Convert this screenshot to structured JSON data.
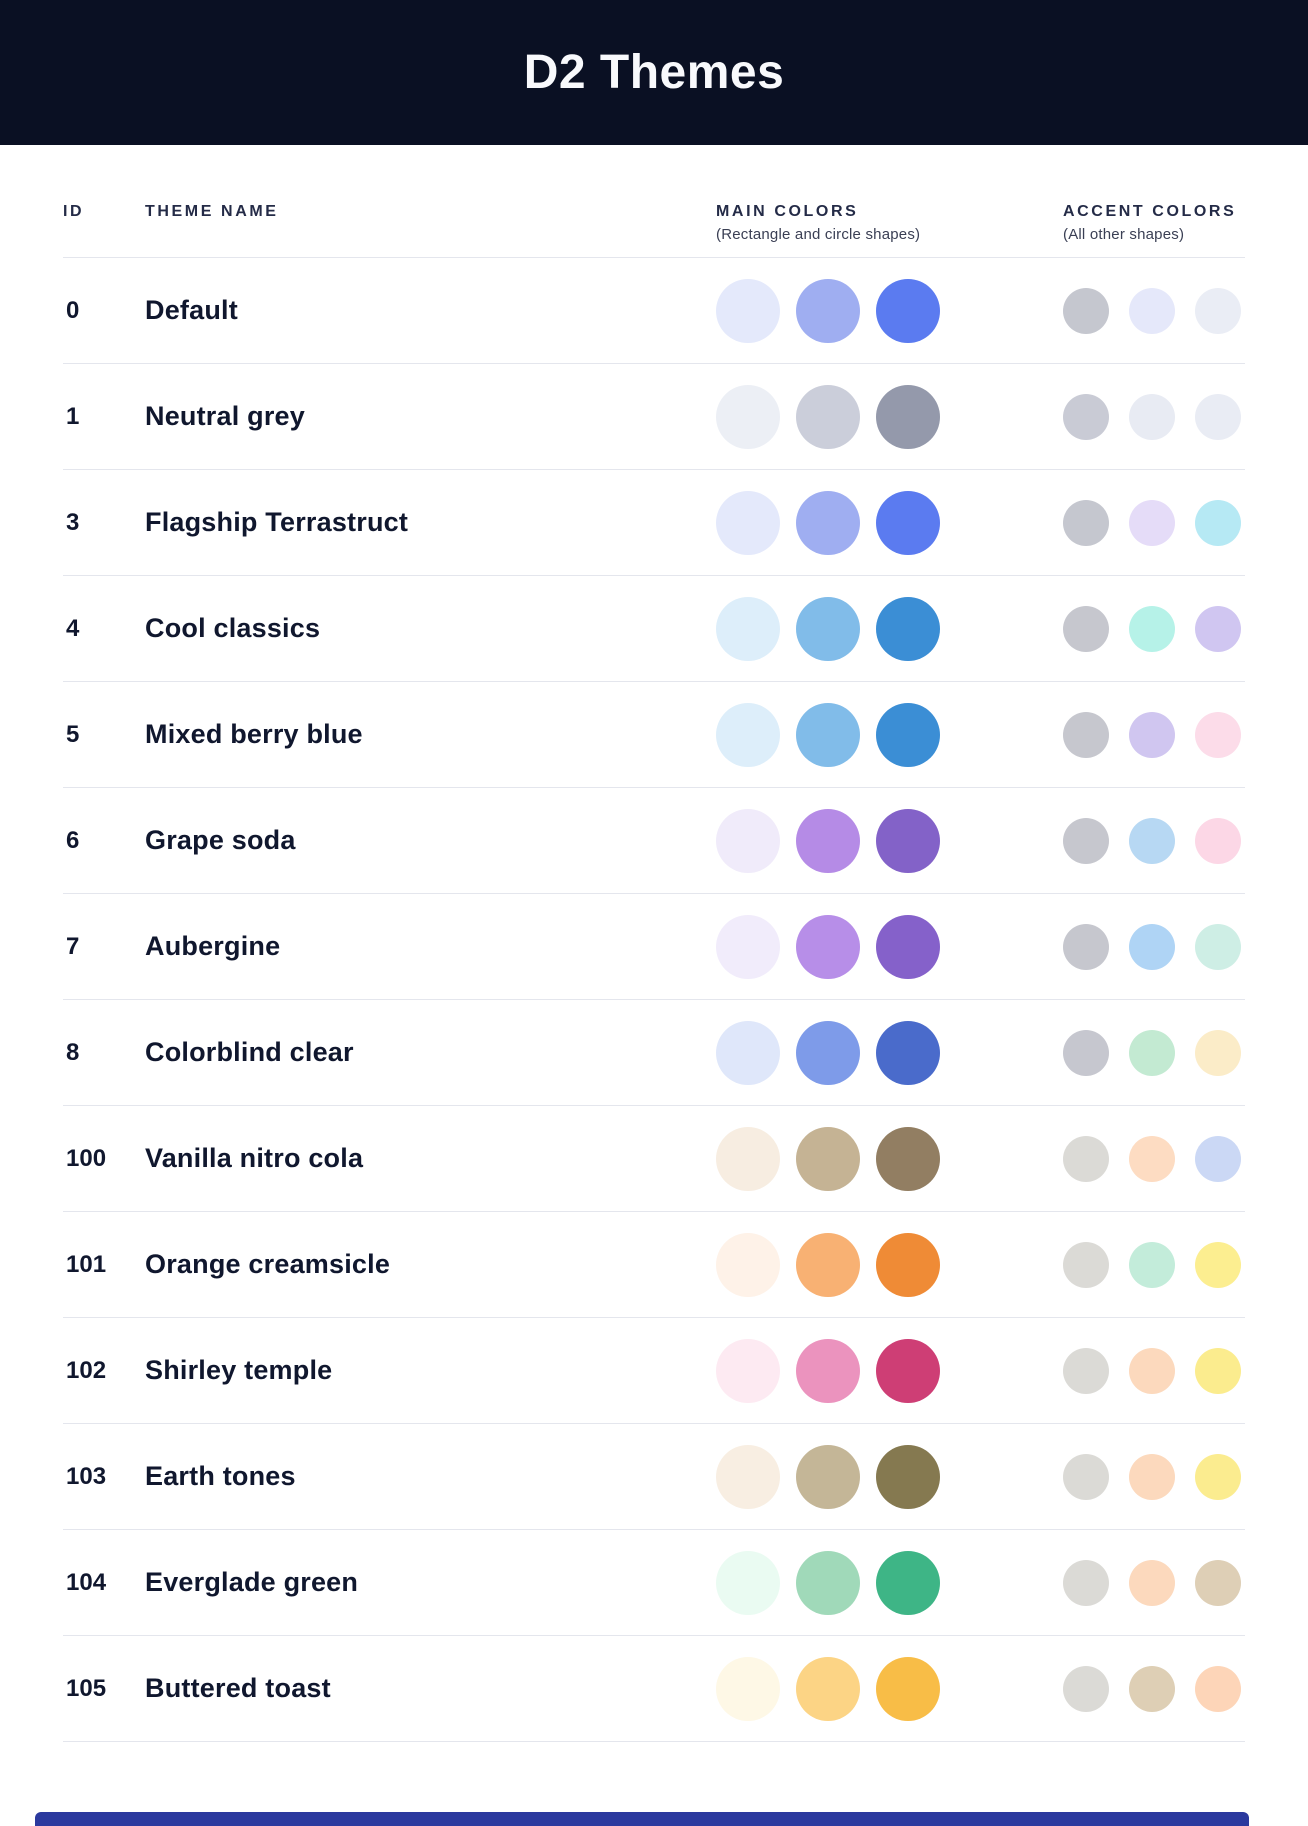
{
  "page": {
    "title": "D2 Themes"
  },
  "colors": {
    "header_bg": "#0A1023",
    "title_text": "#F8F9FC",
    "heading_text": "#242B47",
    "subtitle_text": "#3A3F54",
    "row_text": "#10172E",
    "divider": "#E4E6ED",
    "next_section_bar": "#2B399E"
  },
  "table": {
    "columns": {
      "id_label": "ID",
      "name_label": "THEME NAME",
      "main_label": "MAIN COLORS",
      "main_sub": "(Rectangle and circle shapes)",
      "accent_label": "ACCENT COLORS",
      "accent_sub": "(All other shapes)"
    },
    "themes": [
      {
        "id": "0",
        "name": "Default",
        "main": [
          "#E4E9FB",
          "#9FAEF1",
          "#5B7BF0"
        ],
        "accent": [
          "#C5C7CF",
          "#E5E8FA",
          "#EAEDF5"
        ]
      },
      {
        "id": "1",
        "name": "Neutral grey",
        "main": [
          "#ECEFF5",
          "#CBCEDA",
          "#9499AB"
        ],
        "accent": [
          "#C9CBD5",
          "#E8EBF3",
          "#E9ECF4"
        ]
      },
      {
        "id": "3",
        "name": "Flagship Terrastruct",
        "main": [
          "#E4E9FB",
          "#9FAEF1",
          "#5B7BF0"
        ],
        "accent": [
          "#C5C7CF",
          "#E5DCF8",
          "#B6E9F4"
        ]
      },
      {
        "id": "4",
        "name": "Cool classics",
        "main": [
          "#DDEEFA",
          "#81BCE9",
          "#3B8ED5"
        ],
        "accent": [
          "#C6C7CE",
          "#B6F2E8",
          "#D0C6F1"
        ]
      },
      {
        "id": "5",
        "name": "Mixed berry blue",
        "main": [
          "#DDEEFA",
          "#81BCE9",
          "#3B8ED5"
        ],
        "accent": [
          "#C6C7CE",
          "#D0C6F0",
          "#FCDCE9"
        ]
      },
      {
        "id": "6",
        "name": "Grape soda",
        "main": [
          "#F0EBFA",
          "#B58BE6",
          "#8362C8"
        ],
        "accent": [
          "#C6C7CE",
          "#B7D8F3",
          "#FCD7E6"
        ]
      },
      {
        "id": "7",
        "name": "Aubergine",
        "main": [
          "#F1ECFB",
          "#B78EE8",
          "#8561CA"
        ],
        "accent": [
          "#C6C7CE",
          "#AFD4F5",
          "#CEEEE5"
        ]
      },
      {
        "id": "8",
        "name": "Colorblind clear",
        "main": [
          "#DFE7FA",
          "#7E9BE9",
          "#4A6BCB"
        ],
        "accent": [
          "#C6C7CF",
          "#C3EAD2",
          "#FBECC8"
        ]
      },
      {
        "id": "100",
        "name": "Vanilla nitro cola",
        "main": [
          "#F7EDE1",
          "#C5B394",
          "#927E62"
        ],
        "accent": [
          "#DBDAD6",
          "#FDDCC2",
          "#CBD8F5"
        ]
      },
      {
        "id": "101",
        "name": "Orange creamsicle",
        "main": [
          "#FEF2E8",
          "#F8B173",
          "#EF8B36"
        ],
        "accent": [
          "#DBDAD6",
          "#C3ECDA",
          "#FCEE90"
        ]
      },
      {
        "id": "102",
        "name": "Shirley temple",
        "main": [
          "#FDEAF2",
          "#EB93BE",
          "#CE3E75"
        ],
        "accent": [
          "#DBDAD6",
          "#FCD9BD",
          "#FBEC8E"
        ]
      },
      {
        "id": "103",
        "name": "Earth tones",
        "main": [
          "#F8EEE2",
          "#C4B697",
          "#857950"
        ],
        "accent": [
          "#DBDAD6",
          "#FCD9BD",
          "#FBEC8F"
        ]
      },
      {
        "id": "104",
        "name": "Everglade green",
        "main": [
          "#EAFBF2",
          "#A0D9B9",
          "#3EB586"
        ],
        "accent": [
          "#DBDAD6",
          "#FCD9BD",
          "#DECFB6"
        ]
      },
      {
        "id": "105",
        "name": "Buttered toast",
        "main": [
          "#FEF8E6",
          "#FCD485",
          "#F8BD47"
        ],
        "accent": [
          "#DBDAD6",
          "#DECFB5",
          "#FDD5B8"
        ]
      }
    ]
  }
}
